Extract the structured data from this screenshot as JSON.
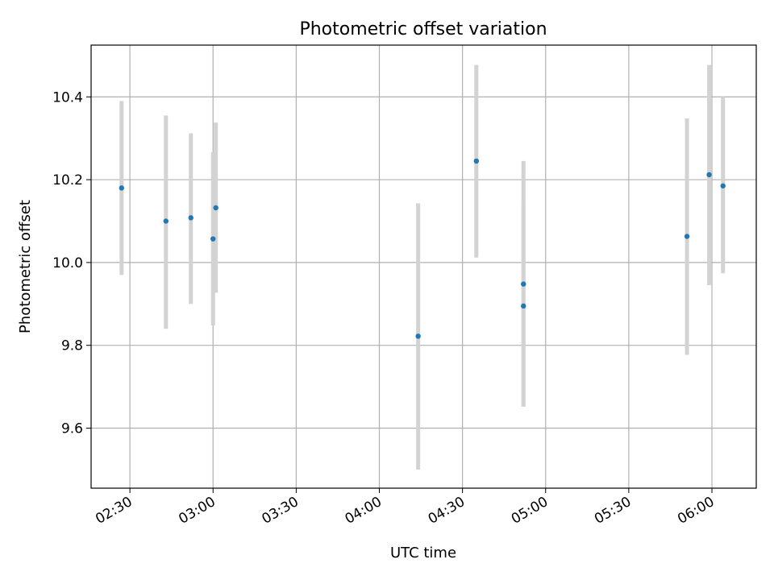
{
  "chart_data": {
    "type": "scatter",
    "title": "Photometric offset variation",
    "xlabel": "UTC time",
    "ylabel": "Photometric offset",
    "x_axis_type": "time",
    "x_ticks": [
      "02:30",
      "03:00",
      "03:30",
      "04:00",
      "04:30",
      "05:00",
      "05:30",
      "06:00"
    ],
    "y_ticks": [
      "9.6",
      "9.8",
      "10.0",
      "10.2",
      "10.4"
    ],
    "xlim": [
      "02:16",
      "06:16"
    ],
    "ylim": [
      9.455,
      10.525
    ],
    "grid": true,
    "legend": "none",
    "colors": {
      "points": "#1f77b4",
      "error_bars": "#d3d3d3"
    },
    "points": [
      {
        "x": "02:27",
        "y": 10.18,
        "err_low": 9.97,
        "err_high": 10.39
      },
      {
        "x": "02:43",
        "y": 10.1,
        "err_low": 9.84,
        "err_high": 10.355
      },
      {
        "x": "02:52",
        "y": 10.108,
        "err_low": 9.9,
        "err_high": 10.312
      },
      {
        "x": "03:00",
        "y": 10.057,
        "err_low": 9.848,
        "err_high": 10.266
      },
      {
        "x": "03:01",
        "y": 10.132,
        "err_low": 9.927,
        "err_high": 10.338
      },
      {
        "x": "04:14",
        "y": 9.822,
        "err_low": 9.5,
        "err_high": 10.143
      },
      {
        "x": "04:35",
        "y": 10.245,
        "err_low": 10.012,
        "err_high": 10.477
      },
      {
        "x": "04:52",
        "y": 9.948,
        "err_low": 9.652,
        "err_high": 10.245
      },
      {
        "x": "04:52",
        "y": 9.895,
        "err_low": 9.652,
        "err_high": 10.138
      },
      {
        "x": "05:51",
        "y": 10.063,
        "err_low": 9.777,
        "err_high": 10.348
      },
      {
        "x": "05:59",
        "y": 10.212,
        "err_low": 9.945,
        "err_high": 10.477
      },
      {
        "x": "06:04",
        "y": 10.185,
        "err_low": 9.974,
        "err_high": 10.4
      }
    ]
  }
}
